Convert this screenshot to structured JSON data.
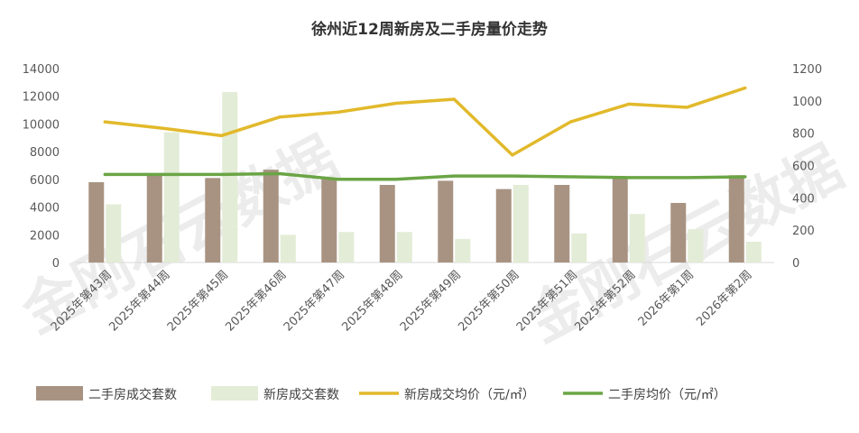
{
  "chart_data": {
    "type": "bar",
    "title": "徐州近12周新房及二手房量价走势",
    "categories": [
      "2025年第43周",
      "2025年第44周",
      "2025年第45周",
      "2025年第46周",
      "2025年第47周",
      "2025年第48周",
      "2025年第49周",
      "2025年第50周",
      "2025年第51周",
      "2025年第52周",
      "2026年第1周",
      "2026年第2周"
    ],
    "y_left": {
      "ticks": [
        "0",
        "2000",
        "4000",
        "6000",
        "8000",
        "10000",
        "12000",
        "14000"
      ],
      "ylim": [
        0,
        14000
      ]
    },
    "y_right": {
      "ticks": [
        "0",
        "200",
        "400",
        "600",
        "800",
        "1000",
        "1200"
      ],
      "ylim": [
        0,
        1200
      ]
    },
    "series": [
      {
        "name": "二手房成交套数",
        "kind": "bar",
        "axis": "left",
        "color": "#a89382",
        "values": [
          5800,
          6400,
          6100,
          6700,
          6000,
          5600,
          5900,
          5300,
          5600,
          6100,
          4300,
          6300
        ]
      },
      {
        "name": "新房成交套数",
        "kind": "bar",
        "axis": "left",
        "color": "#e3ecd6",
        "values": [
          4200,
          9400,
          12300,
          2000,
          2200,
          2200,
          1700,
          5600,
          2100,
          3500,
          2400,
          1500
        ]
      },
      {
        "name": "新房成交均价（元/㎡）",
        "kind": "line",
        "axis": "right",
        "color": "#e2b92b",
        "values": [
          870,
          830,
          785,
          900,
          930,
          985,
          1010,
          665,
          870,
          980,
          960,
          1080
        ]
      },
      {
        "name": "二手房均价（元/㎡）",
        "kind": "line",
        "axis": "right",
        "color": "#6aa545",
        "values": [
          545,
          545,
          545,
          550,
          515,
          515,
          535,
          535,
          530,
          525,
          525,
          530
        ]
      }
    ],
    "legend_position": "bottom",
    "grid": false,
    "watermark": [
      "金刚石云数据",
      "金刚石云数据"
    ]
  }
}
